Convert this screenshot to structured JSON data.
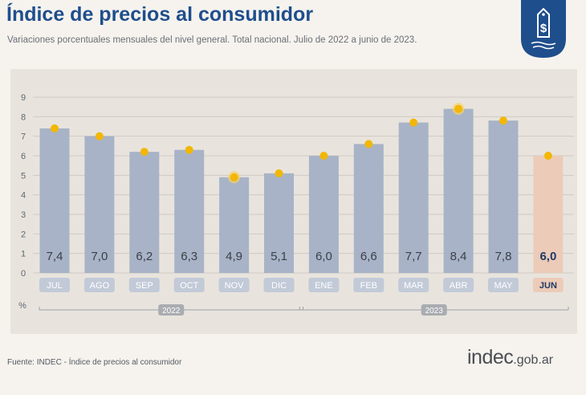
{
  "header": {
    "title": "Índice de precios al consumidor",
    "subtitle": "Variaciones porcentuales mensuales del nivel general. Total nacional. Julio de 2022 a junio de 2023."
  },
  "footer": {
    "source": "Fuente: INDEC - Índice de precios al consumidor",
    "logo_main": "indec",
    "logo_domain": ".gob.ar"
  },
  "badge": {
    "icon": "price-tag-dollar-icon",
    "color": "#1f4e8c"
  },
  "chart_data": {
    "type": "bar",
    "categories": [
      "JUL",
      "AGO",
      "SEP",
      "OCT",
      "NOV",
      "DIC",
      "ENE",
      "FEB",
      "MAR",
      "ABR",
      "MAY",
      "JUN"
    ],
    "values": [
      7.4,
      7.0,
      6.2,
      6.3,
      4.9,
      5.1,
      6.0,
      6.6,
      7.7,
      8.4,
      7.8,
      6.0
    ],
    "value_labels": [
      "7,4",
      "7,0",
      "6,2",
      "6,3",
      "4,9",
      "5,1",
      "6,0",
      "6,6",
      "7,7",
      "8,4",
      "7,8",
      "6,0"
    ],
    "highlight_index": 11,
    "ylabel": "%",
    "ylim": [
      0,
      9
    ],
    "yticks": [
      0,
      1,
      2,
      3,
      4,
      5,
      6,
      7,
      8,
      9
    ],
    "grid": true,
    "year_groups": [
      {
        "label": "2022",
        "start": 0,
        "end": 5
      },
      {
        "label": "2023",
        "start": 6,
        "end": 11
      }
    ],
    "colors": {
      "bar": "#a8b3c7",
      "bar_highlight": "#eccbb8",
      "marker": "#f2b705",
      "marker_ring": "#f7d26b",
      "label_text": "#3b3f47",
      "label_highlight": "#1f3a66",
      "pill": "#c2cad8",
      "pill_highlight": "#eccbb8",
      "grid": "#cfcac2",
      "axis_text": "#5f6670"
    },
    "ringed_markers": [
      4,
      9
    ]
  }
}
